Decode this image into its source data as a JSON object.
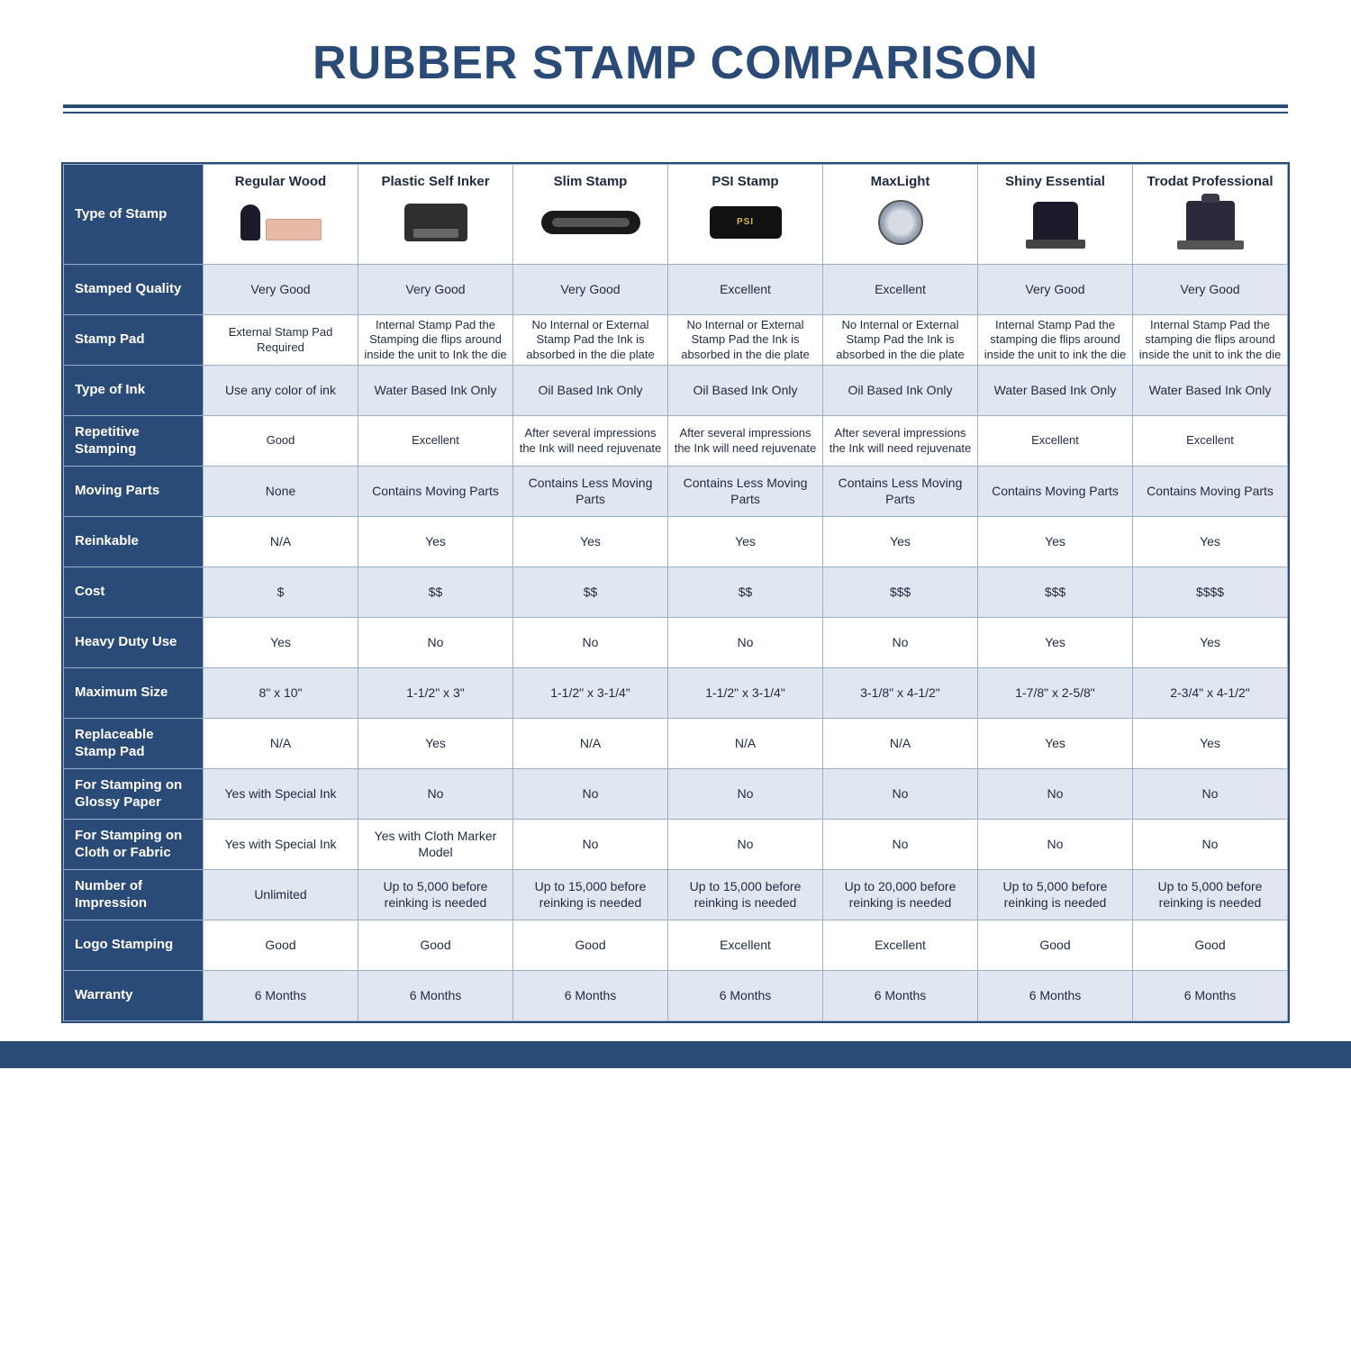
{
  "title": "RUBBER STAMP COMPARISON",
  "colors": {
    "brand": "#2a4a77",
    "header_bg": "#e0e7f1",
    "border": "#9bb0c8",
    "text": "#1f2a40",
    "white": "#ffffff"
  },
  "columns": [
    "Regular Wood",
    "Plastic Self Inker",
    "Slim Stamp",
    "PSI Stamp",
    "MaxLight",
    "Shiny Essential",
    "Trodat Professional"
  ],
  "rows": [
    {
      "label": "Type of Stamp",
      "is_header": true
    },
    {
      "label": "Stamped Quality",
      "alt": true,
      "values": [
        "Very Good",
        "Very Good",
        "Very Good",
        "Excellent",
        "Excellent",
        "Very Good",
        "Very Good"
      ]
    },
    {
      "label": "Stamp Pad",
      "alt": false,
      "small": true,
      "values": [
        "External Stamp Pad Required",
        "Internal Stamp Pad the Stamping die flips around inside the unit to Ink the die",
        "No Internal or External Stamp Pad the Ink is absorbed in the die plate",
        "No Internal or External Stamp Pad the Ink is absorbed in the die plate",
        "No Internal or External Stamp Pad the Ink is absorbed in the die plate",
        "Internal Stamp Pad the stamping die flips around inside the unit to ink the die",
        "Internal Stamp Pad the stamping die flips around inside the unit to ink the die"
      ]
    },
    {
      "label": "Type of Ink",
      "alt": true,
      "values": [
        "Use any color of ink",
        "Water Based Ink Only",
        "Oil Based Ink Only",
        "Oil Based Ink Only",
        "Oil Based Ink Only",
        "Water Based Ink Only",
        "Water Based Ink Only"
      ]
    },
    {
      "label": "Repetitive Stamping",
      "alt": false,
      "small": true,
      "values": [
        "Good",
        "Excellent",
        "After several impressions the Ink will need rejuvenate",
        "After several impressions the Ink will need rejuvenate",
        "After several impressions the Ink will need rejuvenate",
        "Excellent",
        "Excellent"
      ]
    },
    {
      "label": "Moving Parts",
      "alt": true,
      "values": [
        "None",
        "Contains Moving Parts",
        "Contains Less Moving Parts",
        "Contains Less Moving Parts",
        "Contains Less Moving Parts",
        "Contains Moving Parts",
        "Contains Moving Parts"
      ]
    },
    {
      "label": "Reinkable",
      "alt": false,
      "values": [
        "N/A",
        "Yes",
        "Yes",
        "Yes",
        "Yes",
        "Yes",
        "Yes"
      ]
    },
    {
      "label": "Cost",
      "alt": true,
      "values": [
        "$",
        "$$",
        "$$",
        "$$",
        "$$$",
        "$$$",
        "$$$$"
      ]
    },
    {
      "label": "Heavy Duty Use",
      "alt": false,
      "values": [
        "Yes",
        "No",
        "No",
        "No",
        "No",
        "Yes",
        "Yes"
      ]
    },
    {
      "label": "Maximum Size",
      "alt": true,
      "values": [
        "8\" x 10\"",
        "1-1/2\" x 3\"",
        "1-1/2\" x 3-1/4\"",
        "1-1/2\" x 3-1/4\"",
        "3-1/8\" x 4-1/2\"",
        "1-7/8\" x 2-5/8\"",
        "2-3/4\" x 4-1/2\""
      ]
    },
    {
      "label": "Replaceable Stamp Pad",
      "alt": false,
      "values": [
        "N/A",
        "Yes",
        "N/A",
        "N/A",
        "N/A",
        "Yes",
        "Yes"
      ]
    },
    {
      "label": "For Stamping on Glossy Paper",
      "alt": true,
      "values": [
        "Yes with Special Ink",
        "No",
        "No",
        "No",
        "No",
        "No",
        "No"
      ]
    },
    {
      "label": "For Stamping on Cloth or Fabric",
      "alt": false,
      "values": [
        "Yes with Special Ink",
        "Yes with Cloth Marker Model",
        "No",
        "No",
        "No",
        "No",
        "No"
      ]
    },
    {
      "label": "Number of Impression",
      "alt": true,
      "values": [
        "Unlimited",
        "Up to 5,000 before reinking is needed",
        "Up to 15,000 before reinking is needed",
        "Up to 15,000 before reinking is needed",
        "Up to 20,000 before reinking is needed",
        "Up to 5,000 before reinking is needed",
        "Up to 5,000 before reinking is needed"
      ]
    },
    {
      "label": "Logo Stamping",
      "alt": false,
      "values": [
        "Good",
        "Good",
        "Good",
        "Excellent",
        "Excellent",
        "Good",
        "Good"
      ]
    },
    {
      "label": "Warranty",
      "alt": true,
      "values": [
        "6 Months",
        "6 Months",
        "6 Months",
        "6 Months",
        "6 Months",
        "6 Months",
        "6 Months"
      ]
    }
  ],
  "psi_label": "PSI"
}
